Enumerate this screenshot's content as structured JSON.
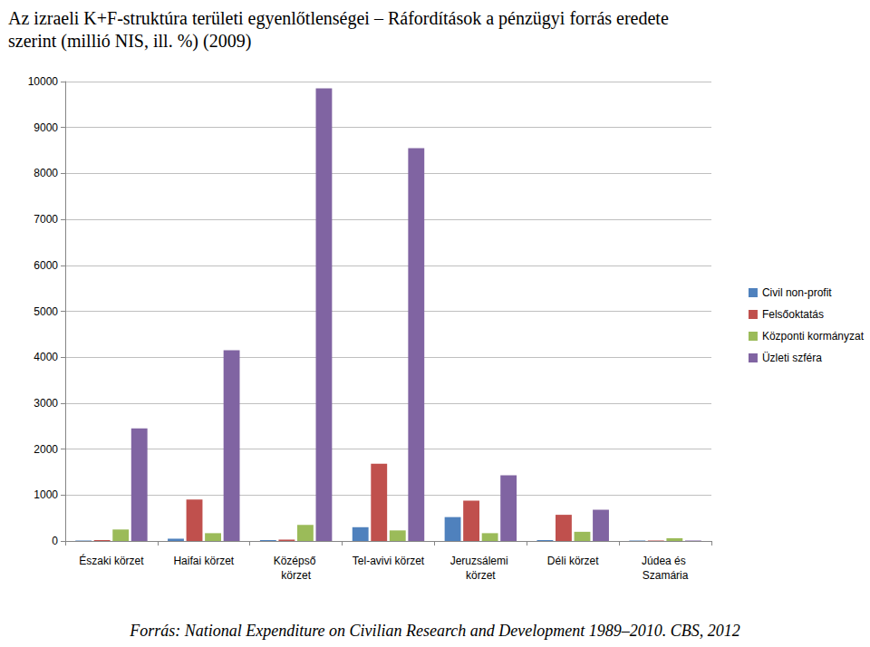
{
  "chart_data": {
    "type": "bar",
    "title": "Az izraeli K+F-struktúra területi egyenlőtlenségei – Ráfordítások a pénzügyi forrás eredete szerint (millió NIS, ill. %) (2009)",
    "source": "Forrás: National Expenditure on Civilian Research and Development 1989–2010. CBS, 2012",
    "categories": [
      "Északi körzet",
      "Haifai körzet",
      "Középső körzet",
      "Tel-avivi körzet",
      "Jeruzsálemi körzet",
      "Déli körzet",
      "Júdea és Szamária"
    ],
    "series": [
      {
        "name": "Civil non-profit",
        "color": "#4f81bd",
        "values": [
          10,
          50,
          20,
          300,
          520,
          20,
          10
        ]
      },
      {
        "name": "Felsőoktatás",
        "color": "#c0504d",
        "values": [
          20,
          900,
          30,
          1680,
          880,
          570,
          10
        ]
      },
      {
        "name": "Központi kormányzat",
        "color": "#9bbb59",
        "values": [
          250,
          170,
          350,
          230,
          170,
          200,
          60
        ]
      },
      {
        "name": "Üzleti szféra",
        "color": "#8064a2",
        "values": [
          2450,
          4150,
          9850,
          8550,
          1430,
          680,
          10
        ]
      }
    ],
    "ylim": [
      0,
      10000
    ],
    "yticks": [
      0,
      1000,
      2000,
      3000,
      4000,
      5000,
      6000,
      7000,
      8000,
      9000,
      10000
    ],
    "grid": true,
    "legend": "right"
  }
}
